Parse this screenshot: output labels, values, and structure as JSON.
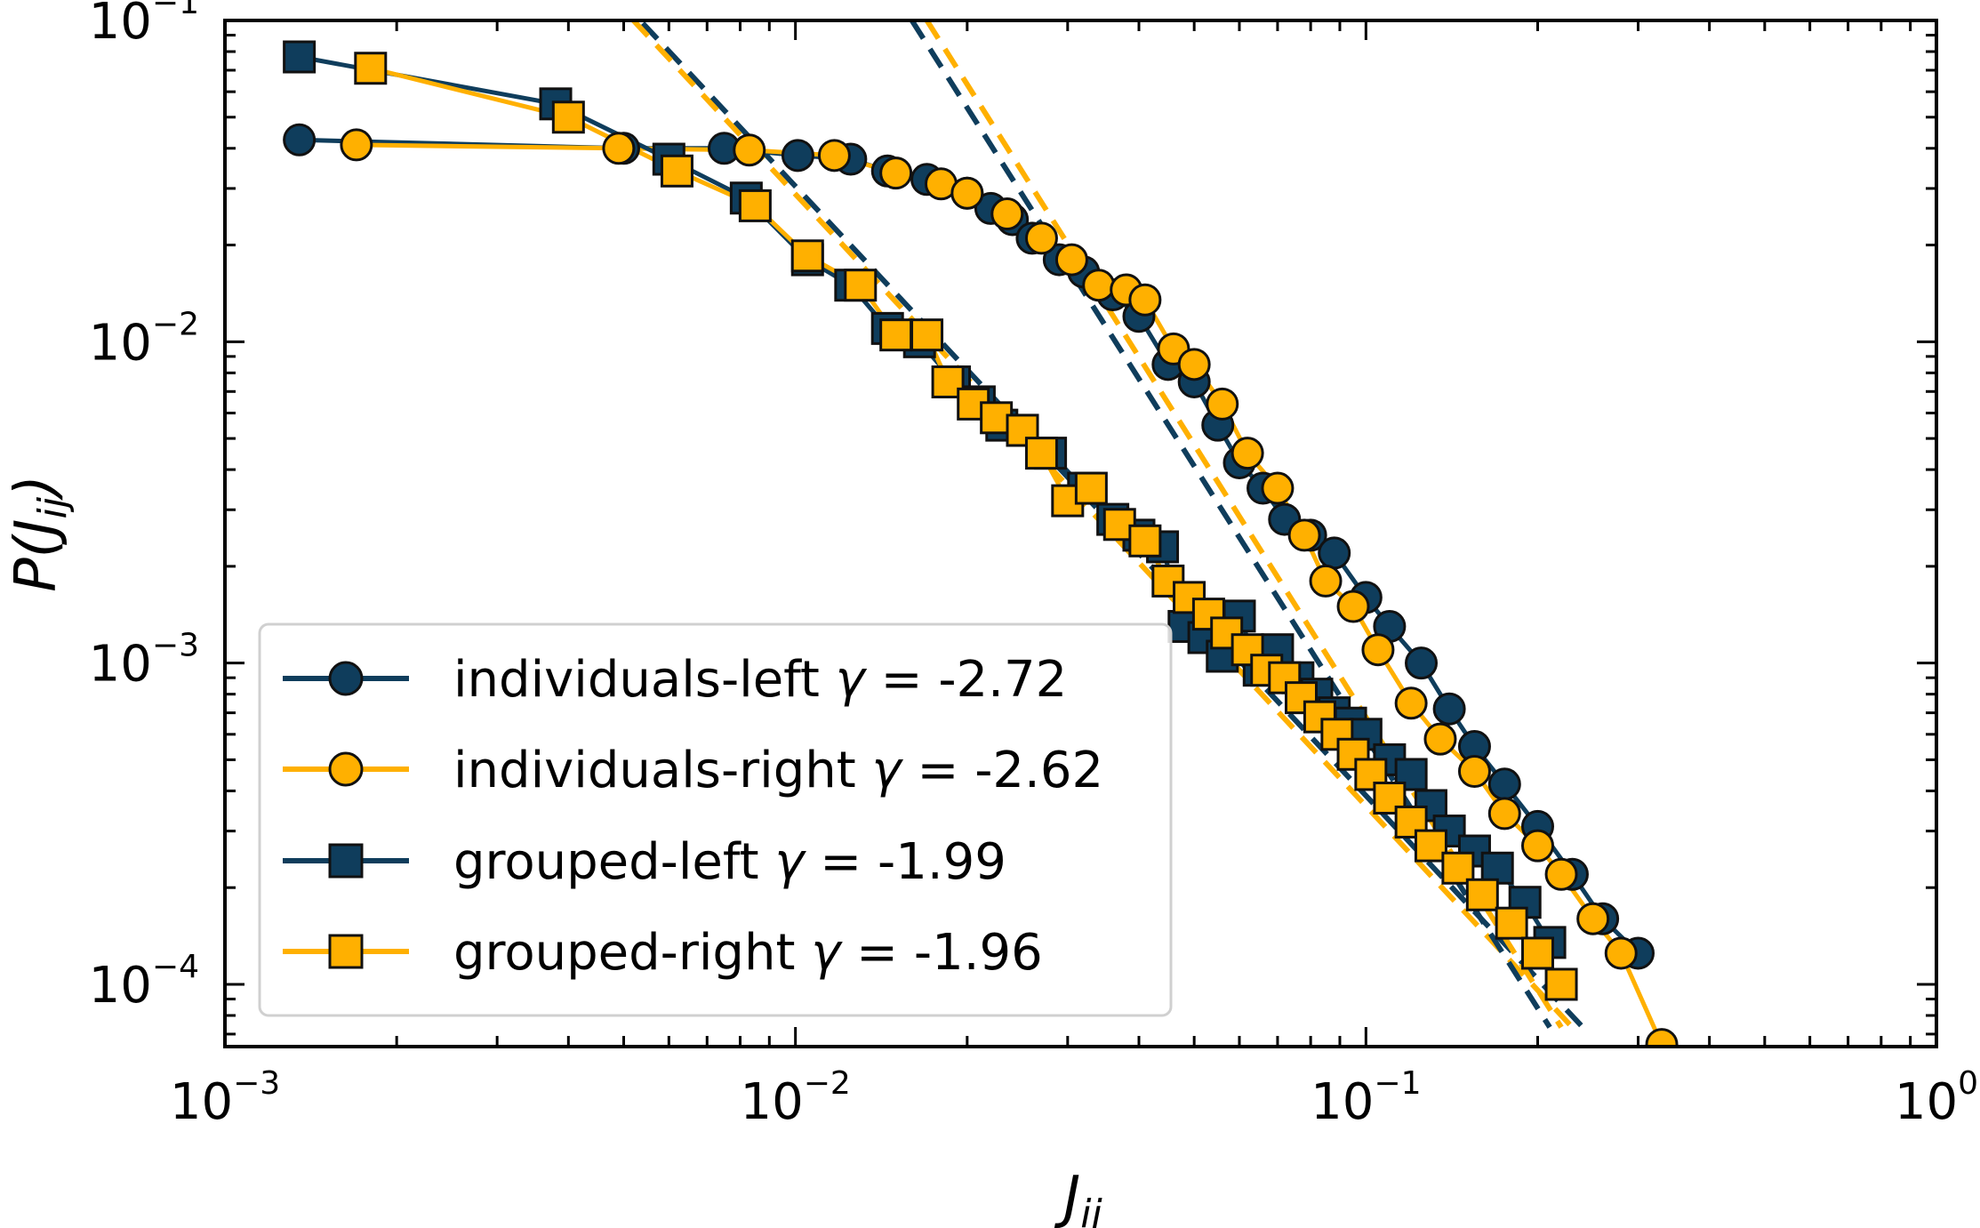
{
  "colors": {
    "dark": "#0f3d5c",
    "orange": "#ffb000",
    "edge": "#111111"
  },
  "chart_data": {
    "type": "scatter",
    "x_scale": "log",
    "y_scale": "log",
    "xlim": [
      0.001,
      1
    ],
    "ylim": [
      6.4e-05,
      0.1
    ],
    "x_ticks": [
      {
        "value": 0.001,
        "base": "10",
        "exp": "−3"
      },
      {
        "value": 0.01,
        "base": "10",
        "exp": "−2"
      },
      {
        "value": 0.1,
        "base": "10",
        "exp": "−1"
      },
      {
        "value": 1,
        "base": "10",
        "exp": "0"
      }
    ],
    "y_ticks": [
      {
        "value": 0.0001,
        "base": "10",
        "exp": "−4"
      },
      {
        "value": 0.001,
        "base": "10",
        "exp": "−3"
      },
      {
        "value": 0.01,
        "base": "10",
        "exp": "−2"
      },
      {
        "value": 0.1,
        "base": "10",
        "exp": "−1"
      }
    ],
    "xlabel": {
      "main": "J",
      "sub": "ij"
    },
    "ylabel": {
      "pre": "P(",
      "main": "J",
      "sub": "ij",
      "post": ")"
    },
    "legend_position": "lower-left",
    "series": [
      {
        "name": "individuals-left γ = -2.72",
        "label_text": "individuals-left ",
        "gamma_symbol": "γ",
        "gamma_text": " = -2.72",
        "color": "dark",
        "marker": "circle",
        "x": [
          0.00135,
          0.005,
          0.0075,
          0.0101,
          0.0125,
          0.0145,
          0.017,
          0.02,
          0.022,
          0.024,
          0.026,
          0.029,
          0.032,
          0.036,
          0.04,
          0.045,
          0.05,
          0.055,
          0.06,
          0.066,
          0.072,
          0.08,
          0.088,
          0.1,
          0.11,
          0.125,
          0.14,
          0.155,
          0.175,
          0.2,
          0.23,
          0.26,
          0.3
        ],
        "y": [
          0.0425,
          0.04,
          0.04,
          0.038,
          0.037,
          0.034,
          0.032,
          0.029,
          0.026,
          0.024,
          0.021,
          0.018,
          0.0165,
          0.014,
          0.012,
          0.0085,
          0.0075,
          0.0055,
          0.0042,
          0.0035,
          0.0028,
          0.0025,
          0.0022,
          0.0016,
          0.0013,
          0.001,
          0.00072,
          0.00055,
          0.00042,
          0.00031,
          0.00022,
          0.00016,
          0.000125
        ]
      },
      {
        "name": "individuals-right γ = -2.62",
        "label_text": "individuals-right ",
        "gamma_symbol": "γ",
        "gamma_text": " = -2.62",
        "color": "orange",
        "marker": "circle",
        "x": [
          0.0017,
          0.0049,
          0.0083,
          0.0117,
          0.015,
          0.018,
          0.02,
          0.0235,
          0.027,
          0.0305,
          0.034,
          0.038,
          0.041,
          0.046,
          0.05,
          0.056,
          0.062,
          0.07,
          0.078,
          0.085,
          0.095,
          0.105,
          0.12,
          0.135,
          0.155,
          0.175,
          0.2,
          0.22,
          0.25,
          0.28,
          0.33
        ],
        "y": [
          0.041,
          0.04,
          0.0395,
          0.038,
          0.0335,
          0.031,
          0.029,
          0.025,
          0.021,
          0.018,
          0.015,
          0.0145,
          0.0135,
          0.0095,
          0.0085,
          0.0064,
          0.0045,
          0.0035,
          0.0025,
          0.0018,
          0.0015,
          0.0011,
          0.00075,
          0.00058,
          0.00046,
          0.00034,
          0.00027,
          0.00022,
          0.00016,
          0.000125,
          6.5e-05
        ]
      },
      {
        "name": "grouped-left γ = -1.99",
        "label_text": "grouped-left ",
        "gamma_symbol": "γ",
        "gamma_text": " = -1.99",
        "color": "dark",
        "marker": "square",
        "x": [
          0.00135,
          0.0038,
          0.006,
          0.0082,
          0.0105,
          0.0125,
          0.0145,
          0.0165,
          0.019,
          0.021,
          0.023,
          0.025,
          0.028,
          0.032,
          0.036,
          0.04,
          0.044,
          0.048,
          0.052,
          0.056,
          0.06,
          0.065,
          0.07,
          0.076,
          0.082,
          0.088,
          0.094,
          0.1,
          0.11,
          0.12,
          0.13,
          0.14,
          0.155,
          0.17,
          0.19,
          0.21
        ],
        "y": [
          0.077,
          0.055,
          0.037,
          0.028,
          0.018,
          0.015,
          0.011,
          0.01,
          0.0075,
          0.0065,
          0.0055,
          0.0053,
          0.0045,
          0.0035,
          0.0028,
          0.0025,
          0.0023,
          0.0013,
          0.0012,
          0.00105,
          0.0014,
          0.00095,
          0.0011,
          0.0009,
          0.0008,
          0.0007,
          0.00065,
          0.0006,
          0.0005,
          0.00045,
          0.00036,
          0.0003,
          0.00026,
          0.00023,
          0.00018,
          0.000135
        ]
      },
      {
        "name": "grouped-right γ = -1.96",
        "label_text": "grouped-right ",
        "gamma_symbol": "γ",
        "gamma_text": " = -1.96",
        "color": "orange",
        "marker": "square",
        "x": [
          0.0018,
          0.004,
          0.0062,
          0.0085,
          0.0105,
          0.013,
          0.015,
          0.017,
          0.0185,
          0.0205,
          0.0225,
          0.025,
          0.027,
          0.03,
          0.033,
          0.037,
          0.041,
          0.045,
          0.049,
          0.053,
          0.057,
          0.062,
          0.067,
          0.072,
          0.077,
          0.083,
          0.089,
          0.095,
          0.102,
          0.11,
          0.12,
          0.13,
          0.145,
          0.16,
          0.18,
          0.2,
          0.22
        ],
        "y": [
          0.071,
          0.05,
          0.034,
          0.0265,
          0.0185,
          0.015,
          0.0105,
          0.0105,
          0.0075,
          0.0064,
          0.0058,
          0.0053,
          0.0045,
          0.0032,
          0.0035,
          0.0027,
          0.0024,
          0.0018,
          0.0016,
          0.00142,
          0.00124,
          0.0011,
          0.00095,
          0.0009,
          0.00078,
          0.00068,
          0.0006,
          0.00052,
          0.00045,
          0.00038,
          0.00032,
          0.00027,
          0.00023,
          0.00019,
          0.000155,
          0.000125,
          0.0001
        ]
      }
    ],
    "fit_lines": [
      {
        "color": "dark",
        "x": [
          0.0054,
          0.24
        ],
        "y": [
          0.098,
          7.35e-05
        ]
      },
      {
        "color": "orange",
        "x": [
          0.0052,
          0.23
        ],
        "y": [
          0.1,
          7.35e-05
        ]
      },
      {
        "color": "dark",
        "x": [
          0.016,
          0.21
        ],
        "y": [
          0.1,
          7.35e-05
        ]
      },
      {
        "color": "orange",
        "x": [
          0.017,
          0.22
        ],
        "y": [
          0.1,
          7.35e-05
        ]
      }
    ]
  }
}
